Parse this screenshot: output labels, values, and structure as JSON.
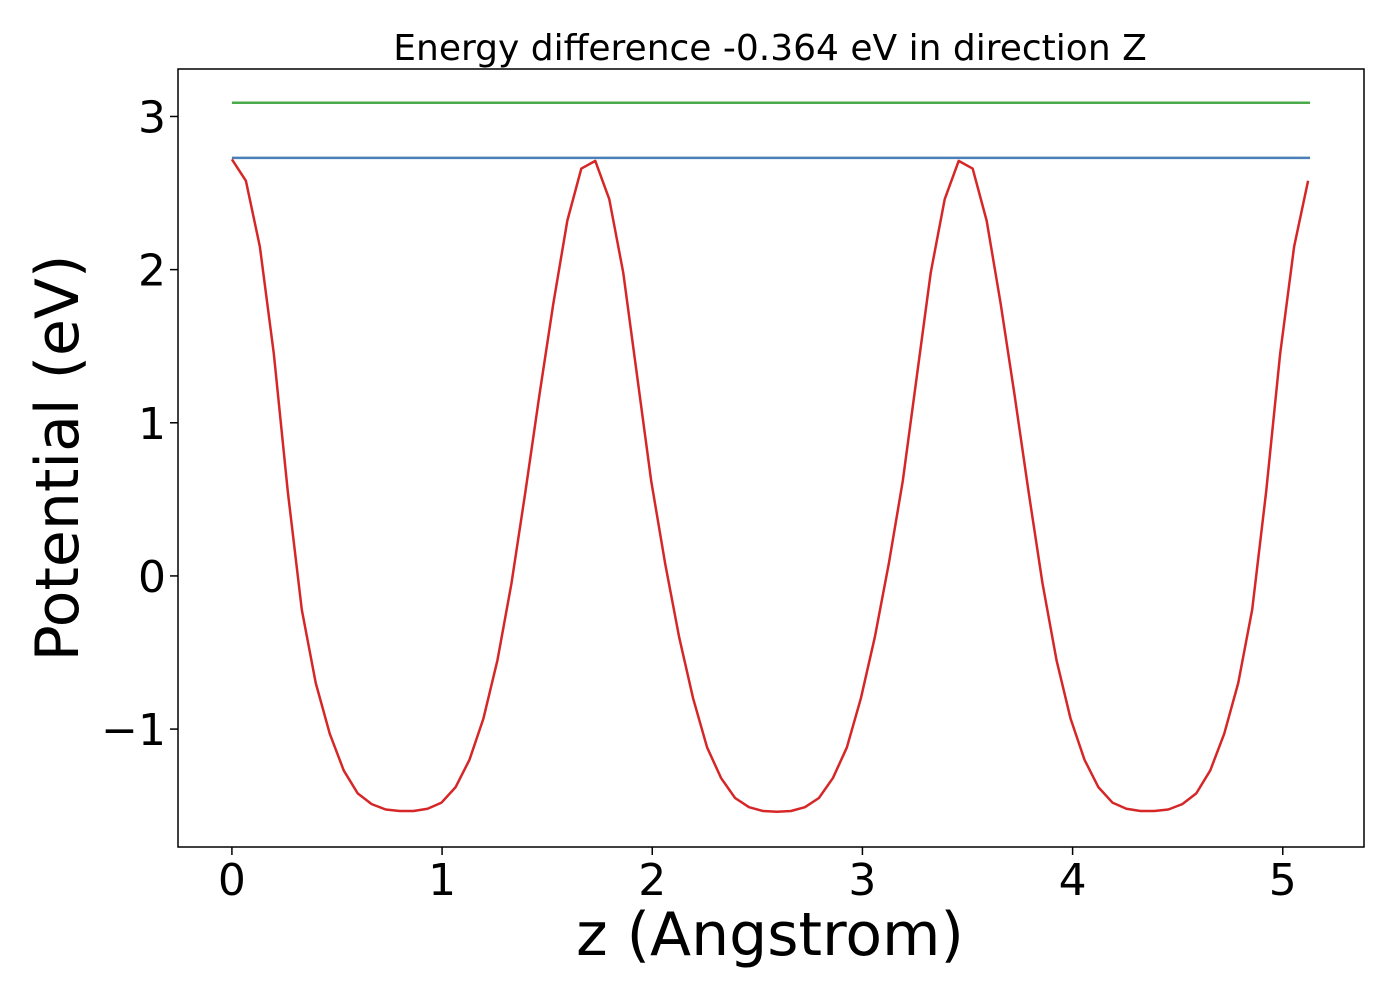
{
  "chart_data": {
    "type": "line",
    "title": "Energy difference -0.364 eV in direction Z",
    "xlabel": "z (Angstrom)",
    "ylabel": "Potential (eV)",
    "xlim": [
      -0.2565,
      5.3865
    ],
    "ylim": [
      -1.77,
      3.31
    ],
    "grid": false,
    "xticks": [
      0,
      1,
      2,
      3,
      4,
      5
    ],
    "xtick_labels": [
      "0",
      "1",
      "2",
      "3",
      "4",
      "5"
    ],
    "yticks": [
      -1,
      0,
      1,
      2,
      3
    ],
    "ytick_labels": [
      "−1",
      "0",
      "1",
      "2",
      "3"
    ],
    "series": [
      {
        "color": "#4a7fb8",
        "x": [
          0,
          5.13
        ],
        "y": [
          2.73,
          2.73
        ]
      },
      {
        "color": "#4aaa4a",
        "x": [
          0,
          5.13
        ],
        "y": [
          3.09,
          3.09
        ]
      },
      {
        "color": "#d62728",
        "x": [
          0.0,
          0.0665,
          0.133,
          0.1995,
          0.266,
          0.3325,
          0.399,
          0.4655,
          0.532,
          0.5985,
          0.665,
          0.7315,
          0.798,
          0.8645,
          0.931,
          0.9975,
          1.064,
          1.1305,
          1.197,
          1.2635,
          1.33,
          1.3965,
          1.463,
          1.5295,
          1.596,
          1.6625,
          1.729,
          1.7955,
          1.862,
          1.9285,
          1.995,
          2.0615,
          2.128,
          2.1945,
          2.261,
          2.3275,
          2.394,
          2.4605,
          2.527,
          2.5935,
          2.66,
          2.7265,
          2.793,
          2.8595,
          2.926,
          2.9925,
          3.059,
          3.1255,
          3.192,
          3.2585,
          3.325,
          3.3915,
          3.458,
          3.5245,
          3.591,
          3.6575,
          3.724,
          3.7905,
          3.857,
          3.9235,
          3.99,
          4.0565,
          4.123,
          4.1895,
          4.256,
          4.3225,
          4.389,
          4.4555,
          4.522,
          4.5885,
          4.655,
          4.7215,
          4.788,
          4.8545,
          4.921,
          4.9875,
          5.054,
          5.1205
        ],
        "y": [
          2.72,
          2.58,
          2.15,
          1.45,
          0.55,
          -0.22,
          -0.7,
          -1.03,
          -1.27,
          -1.42,
          -1.49,
          -1.525,
          -1.535,
          -1.535,
          -1.52,
          -1.48,
          -1.38,
          -1.2,
          -0.93,
          -0.55,
          -0.05,
          0.55,
          1.18,
          1.78,
          2.32,
          2.66,
          2.71,
          2.46,
          1.98,
          1.3,
          0.62,
          0.08,
          -0.4,
          -0.8,
          -1.12,
          -1.32,
          -1.45,
          -1.51,
          -1.535,
          -1.54,
          -1.535,
          -1.51,
          -1.45,
          -1.32,
          -1.12,
          -0.8,
          -0.4,
          0.08,
          0.62,
          1.3,
          1.98,
          2.46,
          2.71,
          2.66,
          2.32,
          1.78,
          1.18,
          0.55,
          -0.05,
          -0.55,
          -0.93,
          -1.2,
          -1.38,
          -1.48,
          -1.52,
          -1.535,
          -1.535,
          -1.525,
          -1.49,
          -1.42,
          -1.27,
          -1.03,
          -0.7,
          -0.22,
          0.55,
          1.45,
          2.15,
          2.58
        ]
      }
    ]
  }
}
